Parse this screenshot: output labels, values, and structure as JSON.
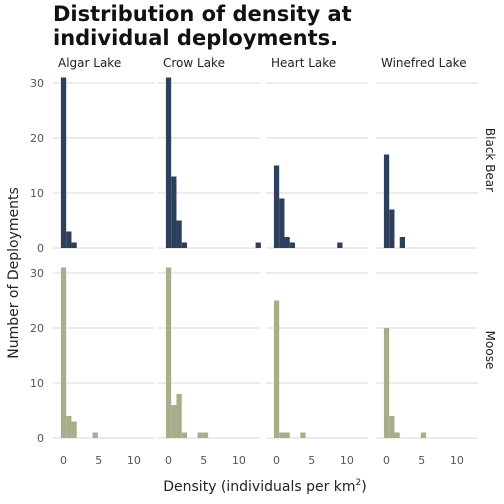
{
  "chart_data": {
    "type": "bar",
    "title_lines": [
      "Distribution of density at",
      "individual deployments."
    ],
    "xlabel_main": "Density (individuals per km",
    "xlabel_sup": "2",
    "xlabel_end": ")",
    "ylabel": "Number of Deployments",
    "columns": [
      "Algar Lake",
      "Crow Lake",
      "Heart Lake",
      "Winefred Lake"
    ],
    "rows": [
      {
        "name": "Black Bear",
        "color": "#2d3f5a",
        "ylim": [
          0,
          32
        ],
        "yticks": [
          0,
          10,
          20,
          30
        ]
      },
      {
        "name": "Moose",
        "color": "#a8ae8c",
        "ylim": [
          0,
          32
        ],
        "yticks": [
          0,
          10,
          20,
          30
        ]
      }
    ],
    "xlim": [
      -1.5,
      13
    ],
    "xticks": [
      0,
      5,
      10
    ],
    "bin_width": 0.75,
    "series": [
      {
        "row": "Black Bear",
        "column": "Algar Lake",
        "bins": [
          {
            "x": 0,
            "count": 31
          },
          {
            "x": 0.75,
            "count": 3
          },
          {
            "x": 1.5,
            "count": 1
          }
        ]
      },
      {
        "row": "Black Bear",
        "column": "Crow Lake",
        "bins": [
          {
            "x": 0,
            "count": 31
          },
          {
            "x": 0.75,
            "count": 13
          },
          {
            "x": 1.5,
            "count": 5
          },
          {
            "x": 2.25,
            "count": 1
          },
          {
            "x": 12.75,
            "count": 1
          }
        ]
      },
      {
        "row": "Black Bear",
        "column": "Heart Lake",
        "bins": [
          {
            "x": 0,
            "count": 15
          },
          {
            "x": 0.75,
            "count": 9
          },
          {
            "x": 1.5,
            "count": 2
          },
          {
            "x": 2.25,
            "count": 1
          },
          {
            "x": 9,
            "count": 1
          }
        ]
      },
      {
        "row": "Black Bear",
        "column": "Winefred Lake",
        "bins": [
          {
            "x": 0,
            "count": 17
          },
          {
            "x": 0.75,
            "count": 7
          },
          {
            "x": 2.25,
            "count": 2
          }
        ]
      },
      {
        "row": "Moose",
        "column": "Algar Lake",
        "bins": [
          {
            "x": 0,
            "count": 31
          },
          {
            "x": 0.75,
            "count": 4
          },
          {
            "x": 1.5,
            "count": 3
          },
          {
            "x": 4.5,
            "count": 1
          }
        ]
      },
      {
        "row": "Moose",
        "column": "Crow Lake",
        "bins": [
          {
            "x": 0,
            "count": 31
          },
          {
            "x": 0.75,
            "count": 6
          },
          {
            "x": 1.5,
            "count": 8
          },
          {
            "x": 2.25,
            "count": 1
          },
          {
            "x": 4.5,
            "count": 1
          },
          {
            "x": 5.25,
            "count": 1
          }
        ]
      },
      {
        "row": "Moose",
        "column": "Heart Lake",
        "bins": [
          {
            "x": 0,
            "count": 25
          },
          {
            "x": 0.75,
            "count": 1
          },
          {
            "x": 1.5,
            "count": 1
          },
          {
            "x": 3.75,
            "count": 1
          }
        ]
      },
      {
        "row": "Moose",
        "column": "Winefred Lake",
        "bins": [
          {
            "x": 0,
            "count": 20
          },
          {
            "x": 0.75,
            "count": 4
          },
          {
            "x": 1.5,
            "count": 1
          },
          {
            "x": 5.25,
            "count": 1
          }
        ]
      }
    ]
  }
}
